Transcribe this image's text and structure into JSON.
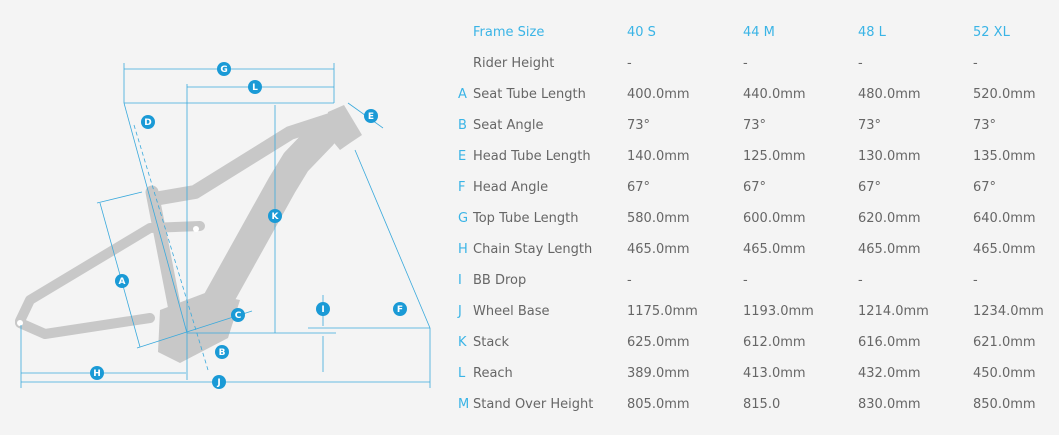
{
  "diagram": {
    "labels": [
      "A",
      "B",
      "C",
      "D",
      "E",
      "F",
      "G",
      "H",
      "I",
      "J",
      "K",
      "L"
    ]
  },
  "table": {
    "header": {
      "label": "Frame Size",
      "sizes": [
        "40 S",
        "44 M",
        "48 L",
        "52 XL"
      ]
    },
    "rows": [
      {
        "letter": "",
        "label": "Rider Height",
        "values": [
          "-",
          "-",
          "-",
          "-"
        ]
      },
      {
        "letter": "A",
        "label": "Seat Tube Length",
        "values": [
          "400.0mm",
          "440.0mm",
          "480.0mm",
          "520.0mm"
        ]
      },
      {
        "letter": "B",
        "label": "Seat Angle",
        "values": [
          "73°",
          "73°",
          "73°",
          "73°"
        ]
      },
      {
        "letter": "E",
        "label": "Head Tube Length",
        "values": [
          "140.0mm",
          "125.0mm",
          "130.0mm",
          "135.0mm"
        ]
      },
      {
        "letter": "F",
        "label": "Head Angle",
        "values": [
          "67°",
          "67°",
          "67°",
          "67°"
        ]
      },
      {
        "letter": "G",
        "label": "Top Tube Length",
        "values": [
          "580.0mm",
          "600.0mm",
          "620.0mm",
          "640.0mm"
        ]
      },
      {
        "letter": "H",
        "label": "Chain Stay Length",
        "values": [
          "465.0mm",
          "465.0mm",
          "465.0mm",
          "465.0mm"
        ]
      },
      {
        "letter": "I",
        "label": "BB Drop",
        "values": [
          "-",
          "-",
          "-",
          "-"
        ]
      },
      {
        "letter": "J",
        "label": "Wheel Base",
        "values": [
          "1175.0mm",
          "1193.0mm",
          "1214.0mm",
          "1234.0mm"
        ]
      },
      {
        "letter": "K",
        "label": "Stack",
        "values": [
          "625.0mm",
          "612.0mm",
          "616.0mm",
          "621.0mm"
        ]
      },
      {
        "letter": "L",
        "label": "Reach",
        "values": [
          "389.0mm",
          "413.0mm",
          "432.0mm",
          "450.0mm"
        ]
      },
      {
        "letter": "M",
        "label": "Stand Over Height",
        "values": [
          "805.0mm",
          "815.0",
          "830.0mm",
          "850.0mm"
        ]
      }
    ]
  },
  "colors": {
    "accent": "#3ab4e6",
    "badge": "#1a9ad6",
    "frame": "#c8c8c8",
    "text": "#666666",
    "background": "#f4f4f4"
  }
}
